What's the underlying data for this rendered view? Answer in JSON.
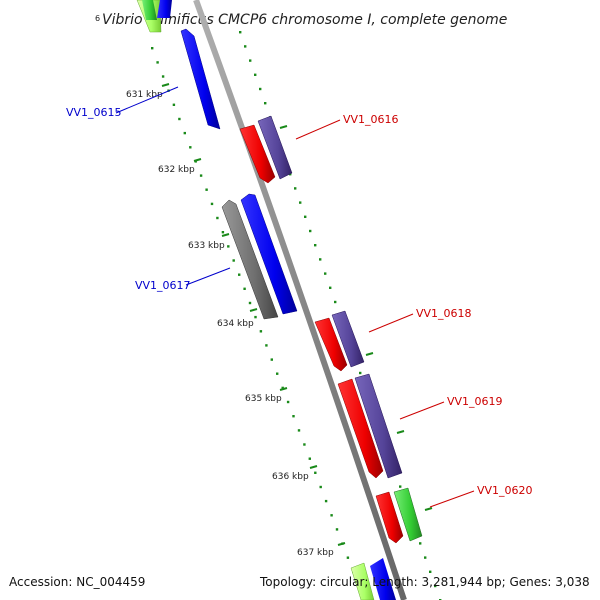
{
  "title": "Vibrio vulnificus CMCP6 chromosome I, complete genome",
  "footer": {
    "accession": "Accession: NC_004459",
    "summary": "Topology: circular; Length: 3,281,944 bp; Genes: 3,038"
  },
  "ticks": [
    "631 kbp",
    "632 kbp",
    "633 kbp",
    "634 kbp",
    "635 kbp",
    "636 kbp",
    "637 kbp"
  ],
  "gene_labels": [
    {
      "text": "VV1_0615",
      "strand": "reverse",
      "color": "#0000cc"
    },
    {
      "text": "VV1_0616",
      "strand": "forward",
      "color": "#cc0000"
    },
    {
      "text": "VV1_0617",
      "strand": "reverse",
      "color": "#0000cc"
    },
    {
      "text": "VV1_0618",
      "strand": "forward",
      "color": "#cc0000"
    },
    {
      "text": "VV1_0619",
      "strand": "forward",
      "color": "#cc0000"
    },
    {
      "text": "VV1_0620",
      "strand": "forward",
      "color": "#cc0000"
    }
  ],
  "colors": {
    "backbone": "#8a8a8a",
    "tick_dots": "#1a8a1a",
    "cds_blue": "#0000ff",
    "cds_red": "#ff0000",
    "cds_purple": "#5a4a9a",
    "cds_gray": "#707070",
    "cds_green": "#44cc44",
    "cds_lightgreen": "#aaff66"
  }
}
